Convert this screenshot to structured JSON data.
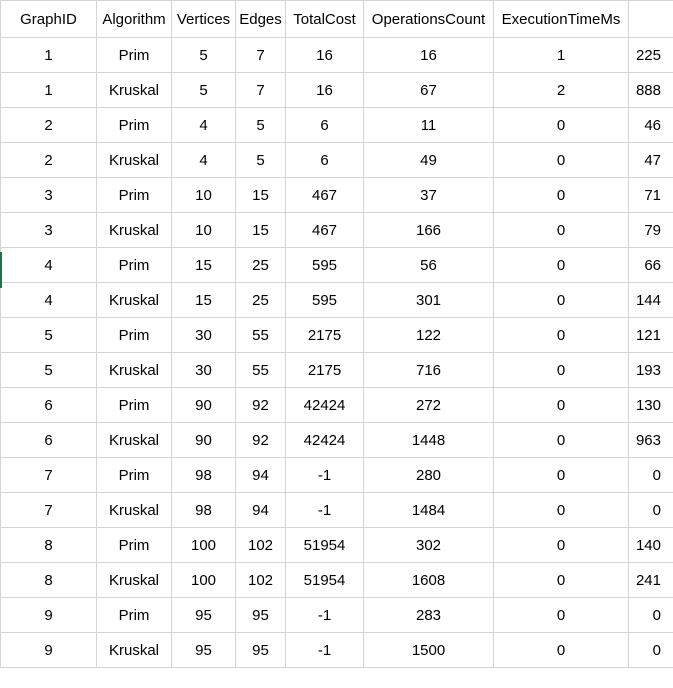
{
  "sheet": {
    "headers": [
      "GraphID",
      "Algorithm",
      "Vertices",
      "Edges",
      "TotalCost",
      "OperationsCount",
      "ExecutionTimeMs",
      ""
    ],
    "rows": [
      [
        "1",
        "Prim",
        "5",
        "7",
        "16",
        "16",
        "1",
        "225"
      ],
      [
        "1",
        "Kruskal",
        "5",
        "7",
        "16",
        "67",
        "2",
        "888"
      ],
      [
        "2",
        "Prim",
        "4",
        "5",
        "6",
        "11",
        "0",
        "46"
      ],
      [
        "2",
        "Kruskal",
        "4",
        "5",
        "6",
        "49",
        "0",
        "47"
      ],
      [
        "3",
        "Prim",
        "10",
        "15",
        "467",
        "37",
        "0",
        "71"
      ],
      [
        "3",
        "Kruskal",
        "10",
        "15",
        "467",
        "166",
        "0",
        "79"
      ],
      [
        "4",
        "Prim",
        "15",
        "25",
        "595",
        "56",
        "0",
        "66"
      ],
      [
        "4",
        "Kruskal",
        "15",
        "25",
        "595",
        "301",
        "0",
        "144"
      ],
      [
        "5",
        "Prim",
        "30",
        "55",
        "2175",
        "122",
        "0",
        "121"
      ],
      [
        "5",
        "Kruskal",
        "30",
        "55",
        "2175",
        "716",
        "0",
        "193"
      ],
      [
        "6",
        "Prim",
        "90",
        "92",
        "42424",
        "272",
        "0",
        "130"
      ],
      [
        "6",
        "Kruskal",
        "90",
        "92",
        "42424",
        "1448",
        "0",
        "963"
      ],
      [
        "7",
        "Prim",
        "98",
        "94",
        "-1",
        "280",
        "0",
        "0"
      ],
      [
        "7",
        "Kruskal",
        "98",
        "94",
        "-1",
        "1484",
        "0",
        "0"
      ],
      [
        "8",
        "Prim",
        "100",
        "102",
        "51954",
        "302",
        "0",
        "140"
      ],
      [
        "8",
        "Kruskal",
        "100",
        "102",
        "51954",
        "1608",
        "0",
        "241"
      ],
      [
        "9",
        "Prim",
        "95",
        "95",
        "-1",
        "283",
        "0",
        "0"
      ],
      [
        "9",
        "Kruskal",
        "95",
        "95",
        "-1",
        "1500",
        "0",
        "0"
      ]
    ]
  },
  "colors": {
    "gridline": "#d4d4d4",
    "selection": "#217346"
  }
}
